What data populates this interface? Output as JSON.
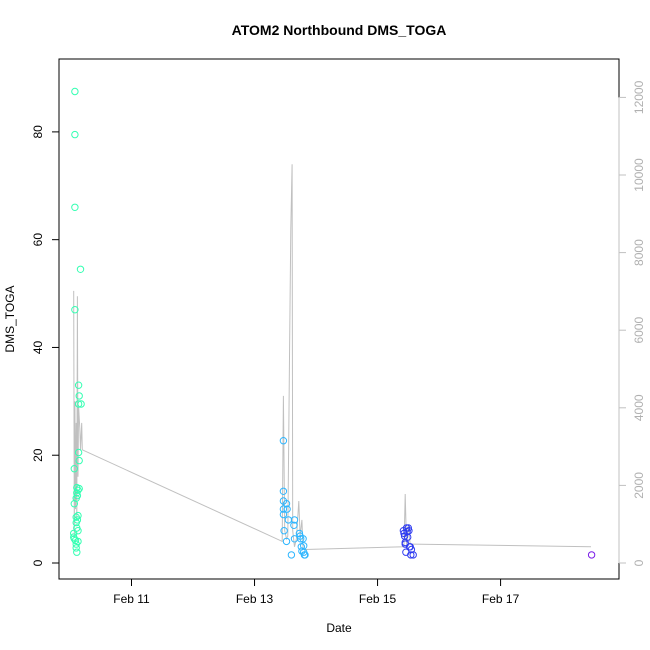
{
  "chart_data": {
    "type": "scatter",
    "title": "ATOM2 Northbound DMS_TOGA",
    "xlabel": "Date",
    "ylabel": "DMS_TOGA",
    "x_unit": "days (February, relative to Feb 1)",
    "xlim": [
      10.0,
      18.6
    ],
    "ylim": [
      0,
      90
    ],
    "y_ticks": [
      0,
      20,
      40,
      60,
      80
    ],
    "x_ticks": [
      {
        "value": 11,
        "label": "Feb 11"
      },
      {
        "value": 13,
        "label": "Feb 13"
      },
      {
        "value": 15,
        "label": "Feb 15"
      },
      {
        "value": 17,
        "label": "Feb 17"
      }
    ],
    "y2_range": [
      0,
      12500
    ],
    "y2_ticks": [
      0,
      2000,
      4000,
      6000,
      8000,
      10000,
      12000
    ],
    "grid": false,
    "legend": "none",
    "colors": {
      "feb10": "#33ffb2",
      "feb13": "#2eb6ff",
      "feb15": "#2f3cf0",
      "feb18": "#7a1ce8",
      "secondary_line": "#c0c0c0",
      "secondary_axis": "#c0c0c0"
    },
    "series": [
      {
        "color_key": "feb10",
        "points": [
          [
            10.08,
            87.5
          ],
          [
            10.08,
            79.5
          ],
          [
            10.08,
            66.0
          ],
          [
            10.08,
            47.0
          ],
          [
            10.07,
            17.5
          ],
          [
            10.07,
            11.0
          ],
          [
            10.06,
            5.5
          ],
          [
            10.06,
            4.8
          ],
          [
            10.07,
            4.5
          ],
          [
            10.09,
            4.2
          ],
          [
            10.1,
            2.8
          ],
          [
            10.1,
            3.5
          ],
          [
            10.1,
            7.5
          ],
          [
            10.1,
            8.5
          ],
          [
            10.1,
            12.0
          ],
          [
            10.11,
            13.0
          ],
          [
            10.11,
            14.0
          ],
          [
            10.11,
            6.5
          ],
          [
            10.11,
            2.0
          ],
          [
            10.12,
            12.5
          ],
          [
            10.12,
            8.0
          ],
          [
            10.13,
            4.0
          ],
          [
            10.13,
            6.0
          ],
          [
            10.13,
            8.8
          ],
          [
            10.13,
            13.5
          ],
          [
            10.14,
            33.0
          ],
          [
            10.14,
            29.5
          ],
          [
            10.14,
            20.5
          ],
          [
            10.15,
            19.0
          ],
          [
            10.15,
            13.8
          ],
          [
            10.15,
            31.0
          ],
          [
            10.18,
            29.5
          ],
          [
            10.17,
            54.5
          ]
        ]
      },
      {
        "color_key": "feb13",
        "points": [
          [
            13.47,
            22.7
          ],
          [
            13.47,
            13.3
          ],
          [
            13.47,
            11.5
          ],
          [
            13.47,
            10.0
          ],
          [
            13.47,
            9.0
          ],
          [
            13.48,
            6.0
          ],
          [
            13.52,
            11.0
          ],
          [
            13.53,
            10.0
          ],
          [
            13.55,
            8.0
          ],
          [
            13.52,
            4.0
          ],
          [
            13.6,
            1.5
          ],
          [
            13.64,
            7.0
          ],
          [
            13.65,
            8.0
          ],
          [
            13.65,
            4.5
          ],
          [
            13.73,
            5.5
          ],
          [
            13.74,
            5.0
          ],
          [
            13.75,
            4.5
          ],
          [
            13.76,
            3.0
          ],
          [
            13.77,
            2.2
          ],
          [
            13.79,
            4.5
          ],
          [
            13.8,
            3.2
          ],
          [
            13.8,
            2.0
          ],
          [
            13.81,
            1.5
          ],
          [
            13.82,
            1.5
          ]
        ]
      },
      {
        "color_key": "feb15",
        "points": [
          [
            15.42,
            6.0
          ],
          [
            15.43,
            5.5
          ],
          [
            15.44,
            5.0
          ],
          [
            15.45,
            3.5
          ],
          [
            15.46,
            2.0
          ],
          [
            15.47,
            6.5
          ],
          [
            15.48,
            5.8
          ],
          [
            15.49,
            4.8
          ],
          [
            15.5,
            6.5
          ],
          [
            15.51,
            6.0
          ],
          [
            15.52,
            3.0
          ],
          [
            15.53,
            3.0
          ],
          [
            15.54,
            1.5
          ],
          [
            15.55,
            2.5
          ],
          [
            15.58,
            1.5
          ],
          [
            15.45,
            3.8
          ]
        ]
      },
      {
        "color_key": "feb18",
        "points": [
          [
            18.48,
            1.5
          ]
        ]
      }
    ],
    "secondary_line": [
      [
        10.06,
        50.5
      ],
      [
        10.07,
        5.0
      ],
      [
        10.08,
        30.0
      ],
      [
        10.09,
        10.0
      ],
      [
        10.1,
        26.0
      ],
      [
        10.11,
        8.0
      ],
      [
        10.12,
        49.5
      ],
      [
        10.13,
        16.0
      ],
      [
        10.14,
        29.0
      ],
      [
        10.16,
        25.0
      ],
      [
        10.17,
        21.0
      ],
      [
        10.19,
        26.0
      ],
      [
        10.2,
        21.0
      ],
      [
        13.45,
        4.0
      ],
      [
        13.47,
        31.0
      ],
      [
        13.49,
        6.0
      ],
      [
        13.52,
        4.5
      ],
      [
        13.54,
        5.0
      ],
      [
        13.57,
        40.0
      ],
      [
        13.59,
        62.0
      ],
      [
        13.61,
        74.0
      ],
      [
        13.62,
        6.0
      ],
      [
        13.65,
        3.0
      ],
      [
        13.68,
        4.5
      ],
      [
        13.72,
        11.5
      ],
      [
        13.74,
        5.0
      ],
      [
        13.77,
        8.0
      ],
      [
        13.79,
        2.5
      ],
      [
        13.82,
        2.5
      ],
      [
        15.43,
        3.0
      ],
      [
        15.45,
        12.8
      ],
      [
        15.47,
        3.5
      ],
      [
        15.5,
        7.0
      ],
      [
        15.53,
        3.5
      ],
      [
        15.57,
        3.5
      ],
      [
        18.47,
        3.0
      ]
    ]
  }
}
